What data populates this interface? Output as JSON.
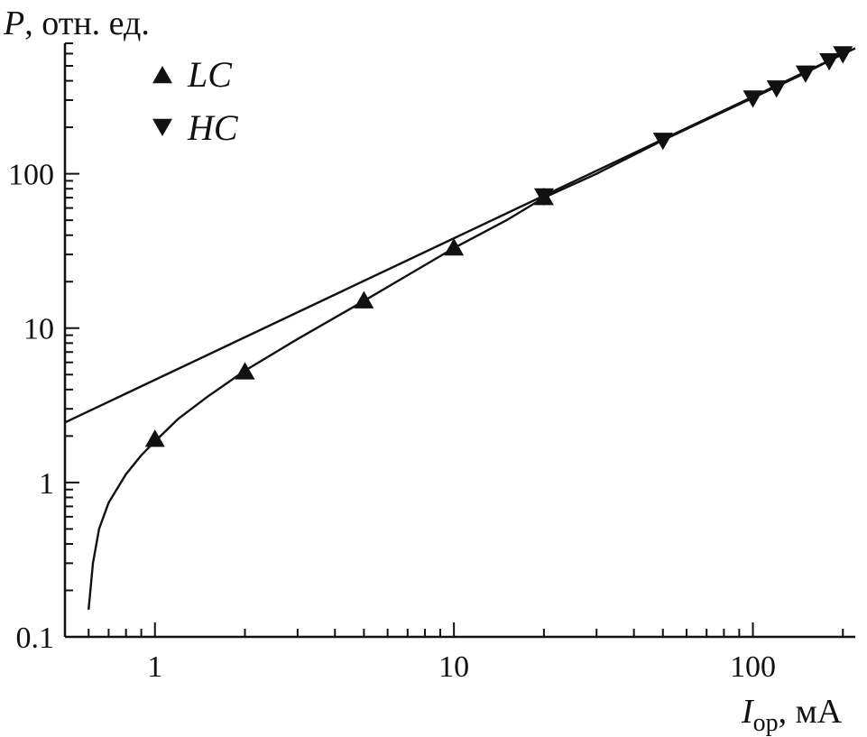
{
  "chart_data": {
    "type": "scatter",
    "x_scale": "log",
    "y_scale": "log",
    "xlim": [
      0.5,
      220
    ],
    "ylim": [
      0.1,
      700
    ],
    "x_ticks": [
      {
        "value": 1,
        "label": "1"
      },
      {
        "value": 10,
        "label": "10"
      },
      {
        "value": 100,
        "label": "100"
      }
    ],
    "y_ticks": [
      {
        "value": 0.1,
        "label": "0.1"
      },
      {
        "value": 1,
        "label": "1"
      },
      {
        "value": 10,
        "label": "10"
      },
      {
        "value": 100,
        "label": "100"
      }
    ],
    "xlabel": {
      "symbol": "I",
      "subscript": "op",
      "unit": ", мА"
    },
    "ylabel": {
      "symbol": "P",
      "unit": ", отн. ед."
    },
    "grid": false,
    "legend_position": "top-left",
    "series": [
      {
        "name": "LC",
        "marker": "triangle-up",
        "x": [
          1,
          2,
          5,
          10,
          20
        ],
        "y": [
          1.9,
          5.2,
          15,
          33,
          70
        ]
      },
      {
        "name": "HC",
        "marker": "triangle-down",
        "x": [
          20,
          50,
          100,
          120,
          150,
          180,
          200
        ],
        "y": [
          72,
          165,
          310,
          360,
          450,
          540,
          600
        ]
      }
    ],
    "fit_lines": [
      {
        "kind": "straight",
        "x": [
          0.5,
          220
        ],
        "y": [
          2.45,
          650
        ]
      },
      {
        "kind": "curve",
        "x": [
          0.6,
          0.62,
          0.65,
          0.7,
          0.8,
          0.9,
          1,
          1.2,
          1.5,
          2,
          3,
          5,
          7,
          10,
          15,
          20,
          30,
          50,
          100,
          150,
          200
        ],
        "y": [
          0.15,
          0.3,
          0.5,
          0.74,
          1.13,
          1.5,
          1.85,
          2.6,
          3.6,
          5.3,
          8.5,
          15,
          22,
          33,
          50,
          70,
          100,
          165,
          310,
          450,
          600
        ]
      }
    ]
  }
}
